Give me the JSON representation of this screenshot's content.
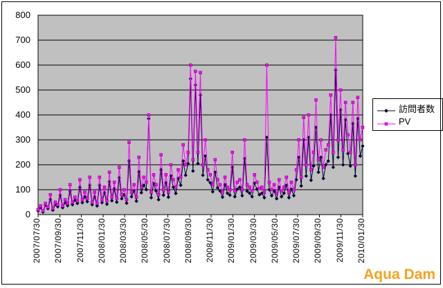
{
  "chart_data": {
    "type": "line",
    "title": "",
    "xlabel": "",
    "ylabel": "",
    "ylim": [
      0,
      800
    ],
    "y_ticks": [
      0,
      100,
      200,
      300,
      400,
      500,
      600,
      700,
      800
    ],
    "x_tick_labels": [
      "2007/07/30",
      "2007/09/30",
      "2007/11/30",
      "2008/01/30",
      "2008/03/30",
      "2008/05/30",
      "2008/07/30",
      "2008/09/30",
      "2008/11/30",
      "2009/01/30",
      "2009/03/30",
      "2009/05/30",
      "2009/07/30",
      "2009/09/30",
      "2009/11/30",
      "2010/01/30"
    ],
    "sampling": "weekly estimates read from dense daily plot, 2007/07/30 through 2010/02",
    "grid": true,
    "plot_bg": "#C0C0C0",
    "legend_position": "right",
    "series": [
      {
        "name": "訪問者数",
        "color": "#000033",
        "marker": "diamond",
        "values": [
          15,
          28,
          10,
          38,
          24,
          62,
          18,
          40,
          32,
          78,
          28,
          48,
          36,
          95,
          40,
          58,
          45,
          110,
          48,
          72,
          52,
          118,
          40,
          72,
          35,
          118,
          48,
          88,
          42,
          132,
          56,
          104,
          50,
          148,
          64,
          80,
          46,
          215,
          72,
          95,
          54,
          172,
          88,
          118,
          100,
          385,
          68,
          125,
          95,
          60,
          180,
          78,
          128,
          70,
          155,
          110,
          85,
          145,
          118,
          215,
          158,
          205,
          545,
          175,
          520,
          205,
          480,
          158,
          235,
          140,
          128,
          92,
          170,
          108,
          95,
          70,
          120,
          86,
          78,
          190,
          72,
          102,
          110,
          76,
          225,
          94,
          86,
          72,
          126,
          102,
          80,
          86,
          68,
          310,
          100,
          76,
          95,
          64,
          110,
          72,
          86,
          118,
          68,
          102,
          76,
          140,
          230,
          115,
          300,
          155,
          310,
          138,
          195,
          350,
          170,
          230,
          145,
          200,
          215,
          400,
          190,
          580,
          230,
          420,
          200,
          380,
          245,
          195,
          365,
          155,
          385,
          235,
          275
        ]
      },
      {
        "name": "PV",
        "color": "#FF00FF",
        "marker": "square",
        "values": [
          20,
          35,
          15,
          45,
          30,
          80,
          25,
          50,
          40,
          100,
          35,
          60,
          45,
          120,
          50,
          70,
          55,
          140,
          60,
          90,
          65,
          150,
          50,
          90,
          45,
          150,
          60,
          110,
          55,
          170,
          70,
          130,
          65,
          190,
          80,
          100,
          60,
          290,
          90,
          120,
          70,
          230,
          110,
          150,
          130,
          400,
          90,
          160,
          120,
          80,
          240,
          100,
          160,
          90,
          200,
          140,
          110,
          180,
          150,
          280,
          200,
          250,
          600,
          220,
          575,
          250,
          570,
          200,
          300,
          180,
          160,
          120,
          220,
          140,
          120,
          90,
          150,
          110,
          100,
          250,
          95,
          130,
          140,
          100,
          300,
          120,
          110,
          95,
          160,
          130,
          105,
          110,
          90,
          600,
          130,
          100,
          120,
          85,
          140,
          95,
          110,
          150,
          90,
          130,
          100,
          180,
          300,
          150,
          390,
          200,
          400,
          180,
          250,
          460,
          220,
          300,
          190,
          260,
          280,
          480,
          250,
          710,
          300,
          500,
          260,
          450,
          320,
          250,
          450,
          200,
          470,
          300,
          350
        ]
      }
    ]
  },
  "watermark": {
    "text": "Aqua Dam",
    "color": "#F7A11E"
  }
}
